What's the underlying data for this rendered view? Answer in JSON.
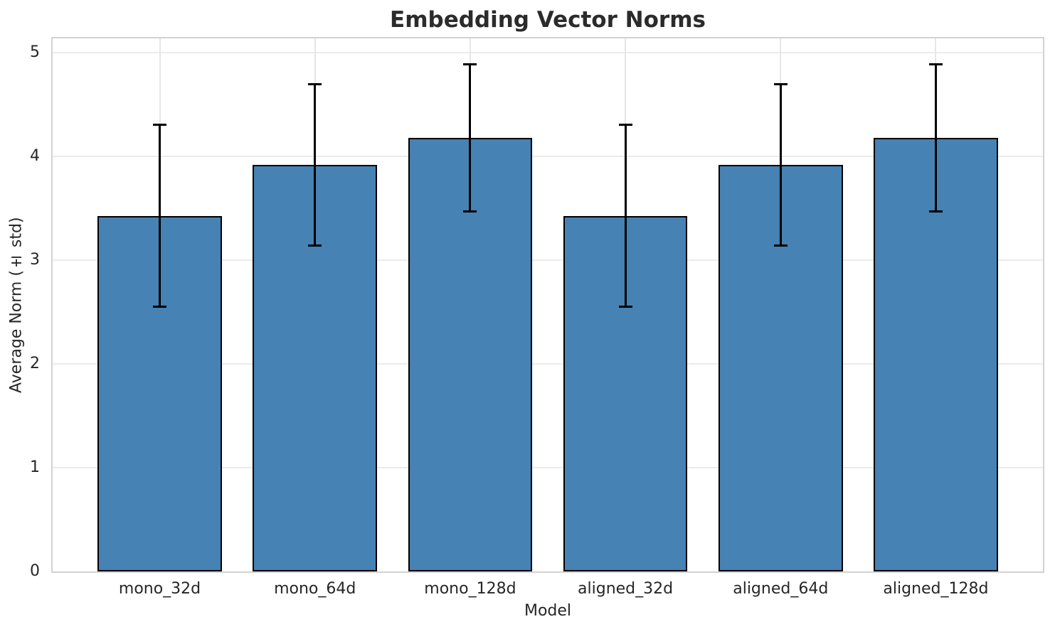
{
  "chart_data": {
    "type": "bar",
    "title": "Embedding Vector Norms",
    "xlabel": "Model",
    "ylabel": "Average Norm (± std)",
    "categories": [
      "mono_32d",
      "mono_64d",
      "mono_128d",
      "aligned_32d",
      "aligned_64d",
      "aligned_128d"
    ],
    "series": [
      {
        "name": "Average Norm",
        "values": [
          3.43,
          3.92,
          4.18,
          3.43,
          3.92,
          4.18
        ],
        "errors": [
          0.88,
          0.78,
          0.71,
          0.88,
          0.78,
          0.71
        ]
      }
    ],
    "yticks": [
      0,
      1,
      2,
      3,
      4,
      5
    ],
    "ylim": [
      0,
      5.14
    ],
    "grid": true,
    "legend": false,
    "layout": {
      "bar_width_frac": 0.8,
      "x_edge_pad_frac": 0.69
    },
    "colors": {
      "bar_fill": "#4682b4",
      "bar_edge": "#000000",
      "error_bar": "#000000",
      "h_grid": "#ebebeb",
      "v_grid": "#e6e6e6",
      "spine": "#d2d2d2",
      "text": "#262626",
      "title": "#2b2b2b",
      "background": "#ffffff"
    }
  }
}
